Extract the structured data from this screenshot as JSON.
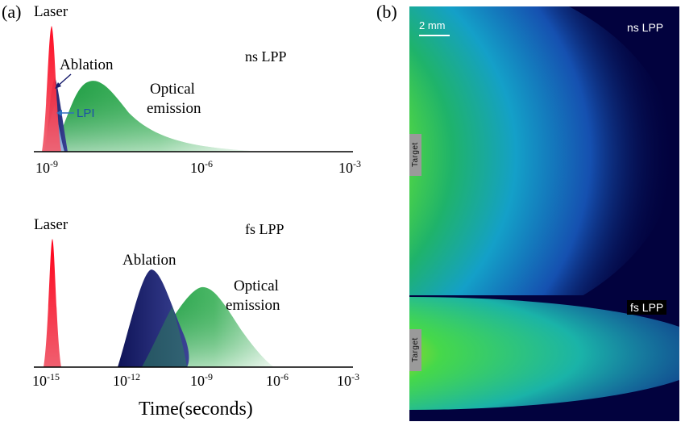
{
  "panel_a": {
    "label": "(a)",
    "top": {
      "mode_label": "ns LPP",
      "laser_label": "Laser",
      "ablation_label": "Ablation",
      "lpi_label": "LPI",
      "emission_line1": "Optical",
      "emission_line2": "emission",
      "ticks": [
        {
          "base": "10",
          "exp": "-9"
        },
        {
          "base": "10",
          "exp": "-6"
        },
        {
          "base": "10",
          "exp": "-3"
        }
      ]
    },
    "bottom": {
      "mode_label": "fs LPP",
      "laser_label": "Laser",
      "ablation_label": "Ablation",
      "emission_line1": "Optical",
      "emission_line2": "emission",
      "ticks": [
        {
          "base": "10",
          "exp": "-15"
        },
        {
          "base": "10",
          "exp": "-12"
        },
        {
          "base": "10",
          "exp": "-9"
        },
        {
          "base": "10",
          "exp": "-6"
        },
        {
          "base": "10",
          "exp": "-3"
        }
      ],
      "xlabel": "Time(seconds)"
    }
  },
  "panel_b": {
    "label": "(b)",
    "scale_bar": "2 mm",
    "ns_label": "ns LPP",
    "fs_label": "fs LPP",
    "target_top": "Target",
    "target_bottom": "Target"
  },
  "colors": {
    "laser": "#e8001c",
    "ablation": "#1a1f6e",
    "lpi": "#3d7fc9",
    "emission": "#22a24a",
    "plume_bg": "#02023e"
  }
}
